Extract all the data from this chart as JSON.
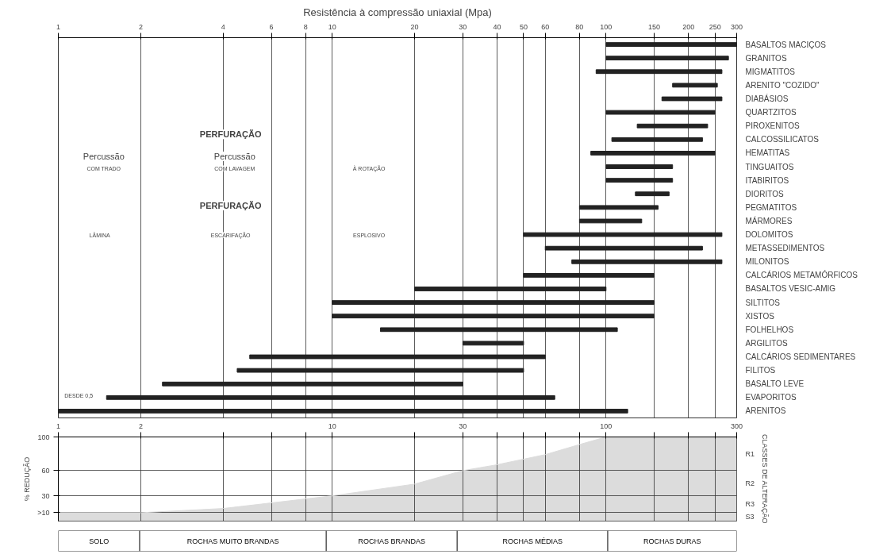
{
  "chart_data": [
    {
      "type": "bar",
      "orientation": "horizontal",
      "title": "Resistência à compressão uniaxial (Mpa)",
      "categories": [
        "BASALTOS MACIÇOS",
        "GRANITOS",
        "MIGMATITOS",
        "ARENITO \"COZIDO\"",
        "DIABÁSIOS",
        "QUARTZITOS",
        "PIROXENITOS",
        "CALCOSSILICATOS",
        "HEMATITAS",
        "TINGUAITOS",
        "ITABIRITOS",
        "DIORITOS",
        "PEGMATITOS",
        "MÁRMORES",
        "DOLOMITOS",
        "METASSEDIMENTOS",
        "MILONITOS",
        "CALCÁRIOS METAMÓRFICOS",
        "BASALTOS VESIC-AMIG",
        "SILTITOS",
        "XISTOS",
        "FOLHELHOS",
        "ARGILITOS",
        "CALCÁRIOS SEDIMENTARES",
        "FILITOS",
        "BASALTO LEVE",
        "EVAPORITOS",
        "ARENITOS"
      ],
      "base": [
        100,
        100,
        92,
        175,
        160,
        100,
        130,
        105,
        88,
        100,
        100,
        128,
        80,
        80,
        50,
        60,
        75,
        50,
        20,
        10,
        10,
        15,
        30,
        5,
        4.5,
        2.4,
        1.5,
        1
      ],
      "values": [
        200,
        180,
        173,
        80,
        105,
        150,
        105,
        120,
        162,
        75,
        75,
        42,
        75,
        55,
        215,
        165,
        190,
        100,
        80,
        140,
        140,
        95,
        20,
        55,
        45.5,
        27.6,
        63.5,
        119
      ],
      "color": "#222222",
      "log": "x",
      "grid": "x",
      "xlim": [
        1,
        300
      ],
      "xticks": [
        1,
        2,
        4,
        6,
        8,
        10,
        20,
        30,
        40,
        50,
        60,
        80,
        100,
        150,
        200,
        250,
        300
      ],
      "annotations": [
        "PERFURAÇÃO",
        "Percussão",
        "COM TRADO",
        "Percussão",
        "COM LAVAGEM",
        "À ROTAÇÃO",
        "PERFURAÇÃO",
        "LÂMINA",
        "ESCARIFAÇÃO",
        "ESPLOSIVO",
        "DESDE 0,5"
      ]
    },
    {
      "type": "area",
      "x": [
        1,
        2,
        4,
        10,
        20,
        30,
        40,
        60,
        80,
        100,
        300
      ],
      "values": [
        10,
        10,
        15,
        30,
        44,
        60,
        67,
        79,
        91,
        100,
        100
      ],
      "color": "#dcdcdc",
      "log": "x",
      "grid": true,
      "ylabel": "% REDUÇÃO",
      "y2label": "CLASSES DE ALTERAÇÃO",
      "xlim": [
        1,
        300
      ],
      "xticks": [
        1,
        2,
        {
          "value": 4,
          "label": null
        },
        {
          "value": 6,
          "label": null
        },
        {
          "value": 8,
          "label": null
        },
        10,
        {
          "value": 20,
          "label": null
        },
        30,
        {
          "value": 40,
          "label": null
        },
        {
          "value": 50,
          "label": null
        },
        {
          "value": 60,
          "label": null
        },
        {
          "value": 80,
          "label": null
        },
        100,
        {
          "value": 150,
          "label": null
        },
        {
          "value": 200,
          "label": null
        },
        {
          "value": 250,
          "label": null
        },
        300
      ],
      "ylim": [
        0,
        100
      ],
      "yticks": [
        {
          "value": 10,
          "label": ">10"
        },
        30,
        60,
        100
      ],
      "annotations": [
        "R1",
        "R2",
        "R3",
        "S3"
      ]
    },
    {
      "type": "other",
      "categories": [
        "SOLO",
        "ROCHAS MUITO BRANDAS",
        "ROCHAS BRANDAS",
        "ROCHAS MÉDIAS",
        "ROCHAS DURAS"
      ]
    }
  ]
}
